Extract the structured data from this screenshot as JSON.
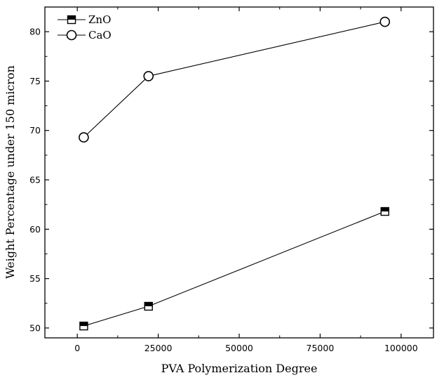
{
  "chart_data": {
    "type": "line",
    "title": "",
    "xlabel": "PVA Polymerization Degree",
    "ylabel": "Weight Percentage under 150 micron",
    "xlim": [
      -10000,
      110000
    ],
    "ylim": [
      49,
      82.5
    ],
    "xticks": [
      0,
      25000,
      50000,
      75000,
      100000
    ],
    "xtick_labels": [
      "0",
      "25000",
      "50000",
      "75000",
      "100000"
    ],
    "yticks": [
      50,
      55,
      60,
      65,
      70,
      75,
      80
    ],
    "ytick_labels": [
      "50",
      "55",
      "60",
      "65",
      "70",
      "75",
      "80"
    ],
    "grid": false,
    "legend_position": "top-left",
    "series": [
      {
        "name": "ZnO",
        "marker": "half-filled-square",
        "color": "#000000",
        "x": [
          2000,
          22000,
          95000
        ],
        "y": [
          50.2,
          52.2,
          61.8
        ]
      },
      {
        "name": "CaO",
        "marker": "open-circle",
        "color": "#000000",
        "x": [
          2000,
          22000,
          95000
        ],
        "y": [
          69.3,
          75.5,
          81.0
        ]
      }
    ]
  }
}
